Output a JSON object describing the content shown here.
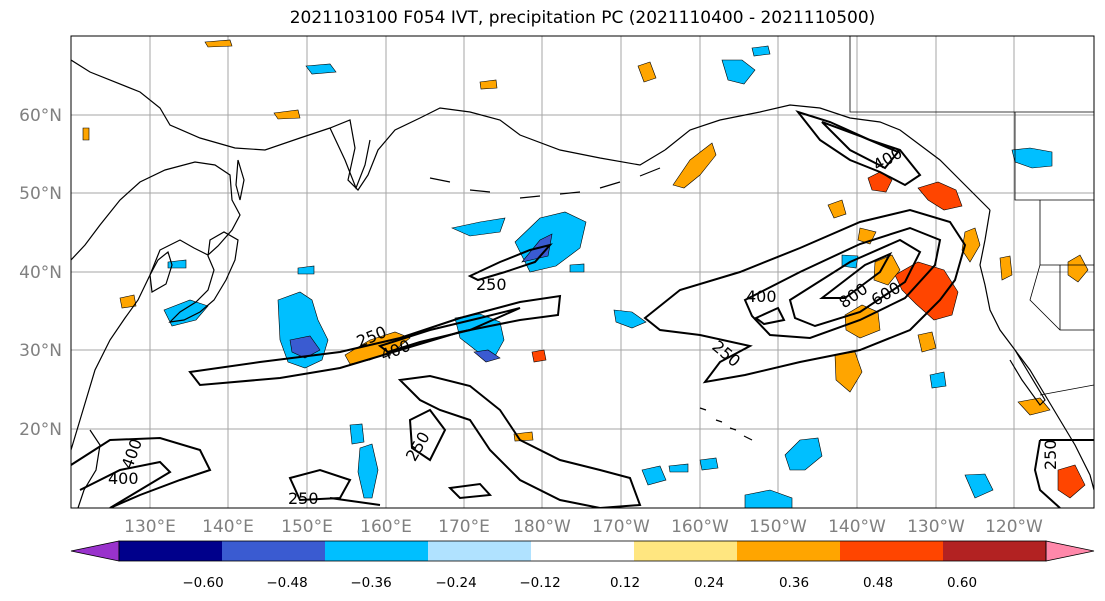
{
  "title": "2021103100 F054 IVT, precipitation PC (2021110400 - 2021110500)",
  "map": {
    "lon_labels": [
      "130°E",
      "140°E",
      "150°E",
      "160°E",
      "170°E",
      "180°W",
      "170°W",
      "160°W",
      "150°W",
      "140°W",
      "130°W",
      "120°W"
    ],
    "lat_labels": [
      "60°N",
      "50°N",
      "40°N",
      "30°N",
      "20°N"
    ],
    "contour_labels": [
      "250",
      "400",
      "250",
      "400",
      "250",
      "250",
      "250",
      "400",
      "800",
      "600",
      "400",
      "250",
      "400",
      "250",
      "250"
    ],
    "gridlines": "on"
  },
  "colorbar": {
    "tick_labels": [
      "−0.60",
      "−0.48",
      "−0.36",
      "−0.24",
      "−0.12",
      "0.12",
      "0.24",
      "0.36",
      "0.48",
      "0.60"
    ],
    "colors": [
      "#9932cc",
      "#00008b",
      "#3a5bd1",
      "#00bfff",
      "#b0e2ff",
      "#ffffff",
      "#ffe680",
      "#ffa500",
      "#ff4500",
      "#b22222",
      "#ff88aa"
    ]
  }
}
